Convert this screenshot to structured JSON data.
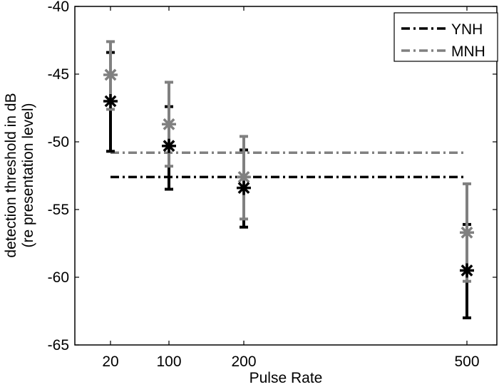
{
  "chart_data": {
    "type": "scatter",
    "title": "",
    "xlabel": "Pulse Rate",
    "ylabel": [
      "detection threshold in dB",
      "(re presentation level)"
    ],
    "categories": [
      "20",
      "100",
      "200",
      "500"
    ],
    "x": [
      20,
      100,
      200,
      500
    ],
    "ylim": [
      -65,
      -40
    ],
    "yticks": [
      -40,
      -45,
      -50,
      -55,
      -60,
      -65
    ],
    "grid": false,
    "legend_position": "upper right",
    "series": [
      {
        "name": "YNH",
        "color": "#000000",
        "marker": "asterisk",
        "values": [
          -47.0,
          -50.3,
          -53.4,
          -59.5
        ],
        "err_upper": [
          -43.4,
          -47.4,
          -50.6,
          -56.1
        ],
        "err_lower": [
          -50.7,
          -53.5,
          -56.3,
          -63.0
        ],
        "reference_line": {
          "value": -52.6,
          "style": "dash-dot",
          "x_from": 20,
          "x_to": 500
        }
      },
      {
        "name": "MNH",
        "color": "#808080",
        "marker": "asterisk",
        "values": [
          -45.05,
          -48.7,
          -52.6,
          -56.7
        ],
        "err_upper": [
          -42.6,
          -45.6,
          -49.6,
          -53.1
        ],
        "err_lower": [
          -47.6,
          -51.8,
          -55.7,
          -60.3
        ],
        "reference_line": {
          "value": -50.8,
          "style": "dash-dot",
          "x_from": 20,
          "x_to": 500
        }
      }
    ]
  },
  "legend": {
    "items": [
      {
        "label": "YNH",
        "color": "#000000"
      },
      {
        "label": "MNH",
        "color": "#808080"
      }
    ]
  }
}
